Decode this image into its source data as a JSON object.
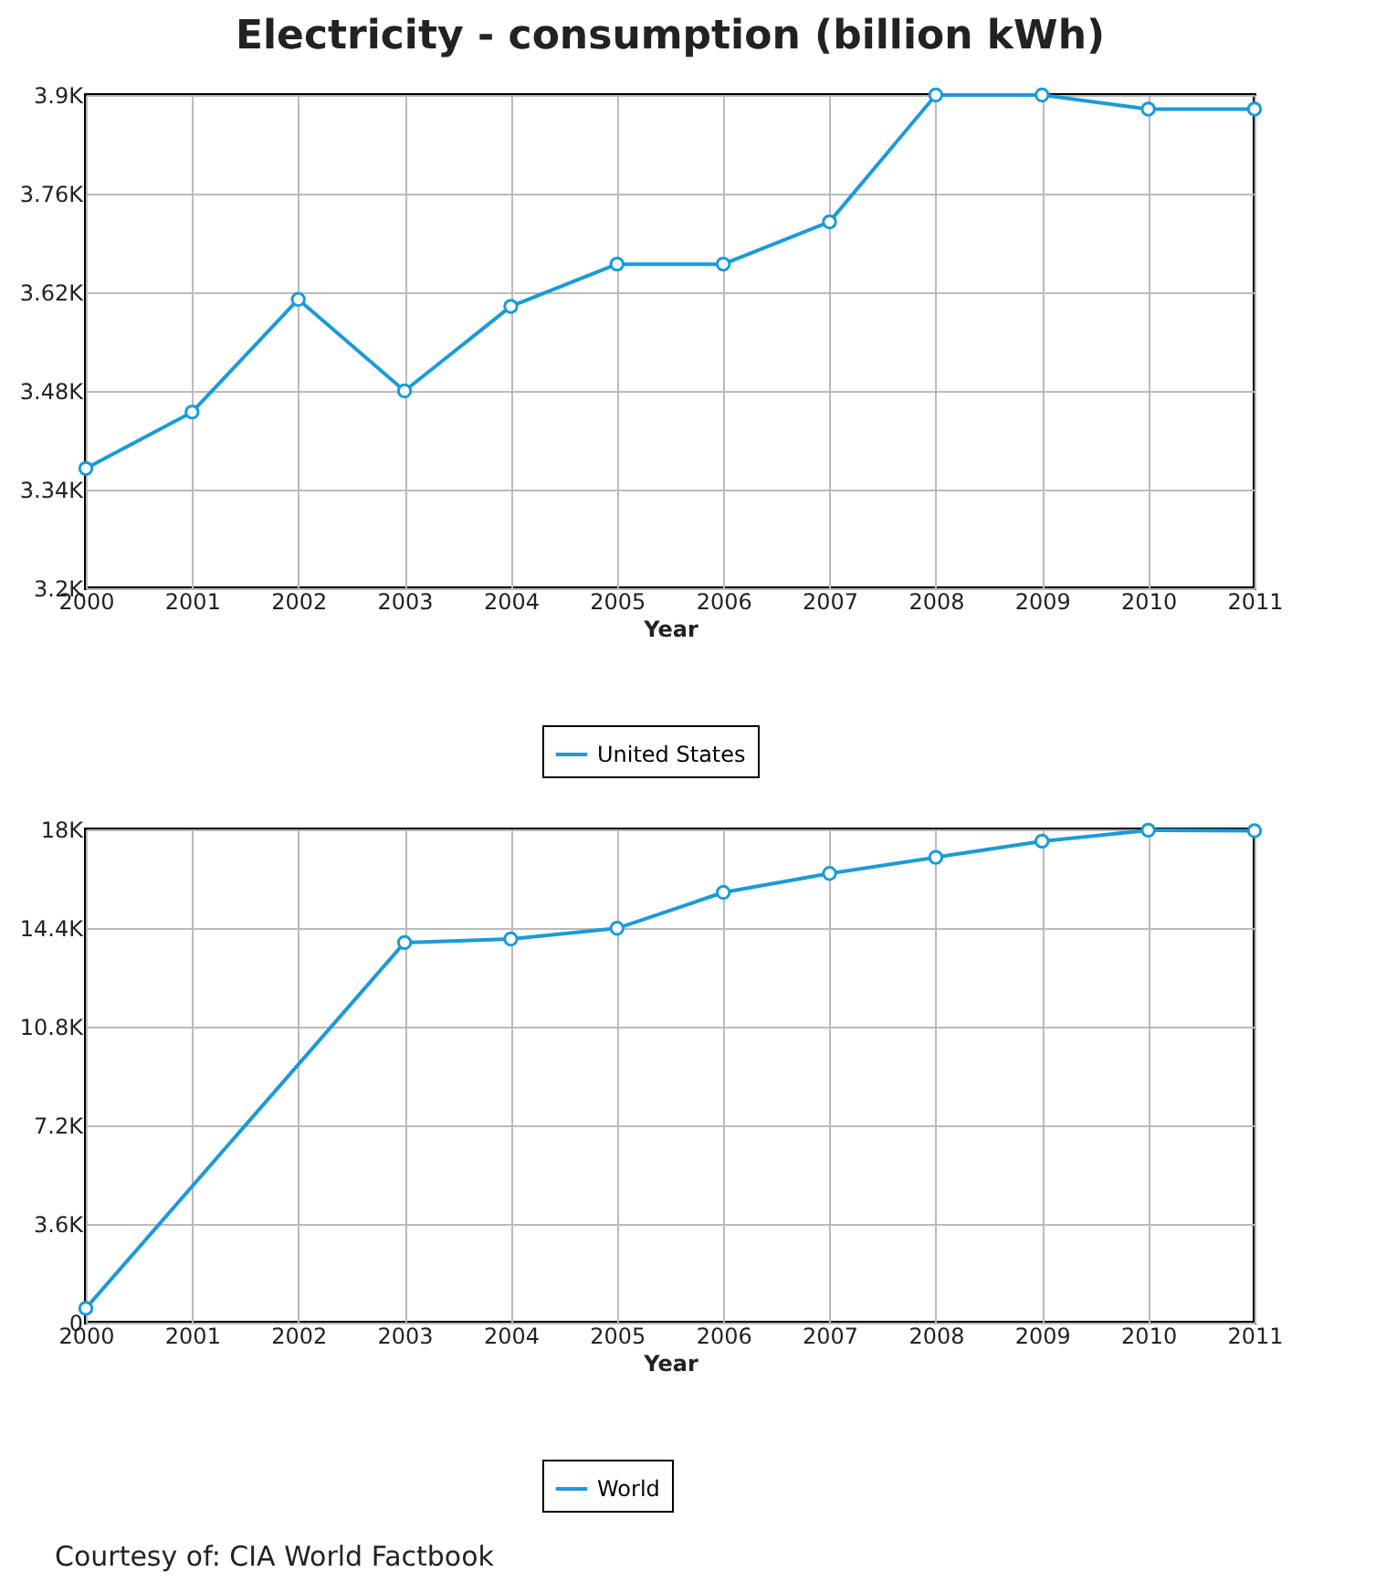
{
  "chart_data": [
    {
      "type": "line",
      "title": "Electricity - consumption (billion kWh)",
      "xlabel": "Year",
      "x": [
        2000,
        2001,
        2002,
        2003,
        2004,
        2005,
        2006,
        2007,
        2008,
        2009,
        2010,
        2011
      ],
      "series": [
        {
          "name": "United States",
          "color": "#1b9bd7",
          "values": [
            3370,
            3450,
            3610,
            3480,
            3600,
            3660,
            3660,
            3720,
            3900,
            3900,
            3880,
            3880
          ]
        }
      ],
      "xlim": [
        2000,
        2011
      ],
      "xticks": [
        2000,
        2001,
        2002,
        2003,
        2004,
        2005,
        2006,
        2007,
        2008,
        2009,
        2010,
        2011
      ],
      "ylim": [
        3200,
        3900
      ],
      "yticks": [
        {
          "value": 3200,
          "label": "3.2K"
        },
        {
          "value": 3340,
          "label": "3.34K"
        },
        {
          "value": 3480,
          "label": "3.48K"
        },
        {
          "value": 3620,
          "label": "3.62K"
        },
        {
          "value": 3760,
          "label": "3.76K"
        },
        {
          "value": 3900,
          "label": "3.9K"
        }
      ],
      "grid": true,
      "legend": "bottom",
      "marker": "circle"
    },
    {
      "type": "line",
      "xlabel": "Year",
      "series": [
        {
          "name": "World",
          "color": "#1b9bd7",
          "x": [
            2000,
            2003,
            2004,
            2005,
            2006,
            2007,
            2008,
            2009,
            2010,
            2011
          ],
          "values": [
            520,
            13870,
            14000,
            14390,
            15700,
            16390,
            16980,
            17570,
            17970,
            17950
          ]
        }
      ],
      "xlim": [
        2000,
        2011
      ],
      "xticks": [
        2000,
        2001,
        2002,
        2003,
        2004,
        2005,
        2006,
        2007,
        2008,
        2009,
        2010,
        2011
      ],
      "ylim": [
        0,
        18000
      ],
      "yticks": [
        0,
        {
          "value": 3600,
          "label": "3.6K"
        },
        {
          "value": 7200,
          "label": "7.2K"
        },
        {
          "value": 10800,
          "label": "10.8K"
        },
        {
          "value": 14400,
          "label": "14.4K"
        },
        {
          "value": 18000,
          "label": "18K"
        }
      ],
      "grid": true,
      "legend": "bottom",
      "marker": "circle",
      "annotations": [
        "Courtesy of: CIA World Factbook"
      ]
    }
  ]
}
